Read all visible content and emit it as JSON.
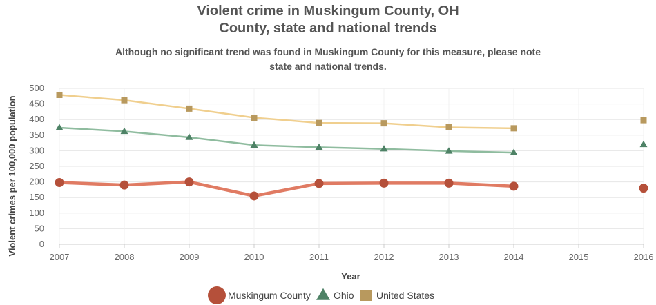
{
  "chart_data": {
    "type": "line",
    "title": "Violent crime in Muskingum County, OH",
    "title_line2": "County, state and national trends",
    "subtitle_line1": "Although no significant trend was found in Muskingum County for this measure, please note",
    "subtitle_line2": "state and national trends.",
    "xlabel": "Year",
    "ylabel": "Violent crimes per 100,000 population",
    "x_ticks": [
      "2007",
      "2008",
      "2009",
      "2010",
      "2011",
      "2012",
      "2013",
      "2014",
      "2015",
      "2016"
    ],
    "y_ticks": [
      "0",
      "50",
      "100",
      "150",
      "200",
      "250",
      "300",
      "350",
      "400",
      "450",
      "500"
    ],
    "xlim": [
      2007,
      2016
    ],
    "ylim": [
      0,
      500
    ],
    "grid": true,
    "legend_position": "bottom",
    "series": [
      {
        "name": "Muskingum County",
        "color": "#e07b63",
        "marker_color": "#b5503a",
        "marker": "circle",
        "points": [
          {
            "x": 2007,
            "y": 198
          },
          {
            "x": 2008,
            "y": 190
          },
          {
            "x": 2009,
            "y": 200
          },
          {
            "x": 2010,
            "y": 155
          },
          {
            "x": 2011,
            "y": 195
          },
          {
            "x": 2012,
            "y": 196
          },
          {
            "x": 2013,
            "y": 196
          },
          {
            "x": 2014,
            "y": 186
          },
          {
            "x": 2016,
            "y": 180
          }
        ]
      },
      {
        "name": "Ohio",
        "color": "#8fbc9f",
        "marker_color": "#4e8266",
        "marker": "triangle",
        "points": [
          {
            "x": 2007,
            "y": 374
          },
          {
            "x": 2008,
            "y": 362
          },
          {
            "x": 2009,
            "y": 343
          },
          {
            "x": 2010,
            "y": 318
          },
          {
            "x": 2011,
            "y": 311
          },
          {
            "x": 2012,
            "y": 306
          },
          {
            "x": 2013,
            "y": 299
          },
          {
            "x": 2014,
            "y": 294
          },
          {
            "x": 2016,
            "y": 320
          }
        ]
      },
      {
        "name": "United States",
        "color": "#f0cf8e",
        "marker_color": "#b8995e",
        "marker": "square",
        "points": [
          {
            "x": 2007,
            "y": 479
          },
          {
            "x": 2008,
            "y": 462
          },
          {
            "x": 2009,
            "y": 435
          },
          {
            "x": 2010,
            "y": 406
          },
          {
            "x": 2011,
            "y": 389
          },
          {
            "x": 2012,
            "y": 388
          },
          {
            "x": 2013,
            "y": 375
          },
          {
            "x": 2014,
            "y": 372
          },
          {
            "x": 2016,
            "y": 398
          }
        ]
      }
    ]
  }
}
